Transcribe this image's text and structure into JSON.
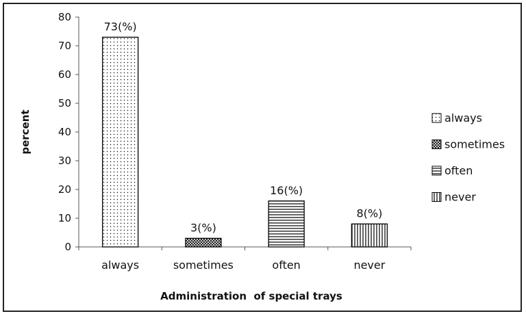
{
  "chart_data": {
    "type": "bar",
    "categories": [
      "always",
      "sometimes",
      "often",
      "never"
    ],
    "values": [
      73,
      3,
      16,
      8
    ],
    "data_labels": [
      "73(%)",
      "3(%)",
      "16(%)",
      "8(%)"
    ],
    "xlabel": "Administration  of special trays",
    "ylabel": "percent",
    "ylim": [
      0,
      80
    ],
    "yticks": [
      0,
      10,
      20,
      30,
      40,
      50,
      60,
      70,
      80
    ],
    "grid": false,
    "legend": {
      "placement": "right",
      "entries": [
        "always",
        "sometimes",
        "often",
        "never"
      ]
    },
    "patterns": [
      "dots",
      "crosshatch",
      "horizontal-lines",
      "vertical-lines"
    ],
    "bar_fill_color": "#ffffff",
    "bar_edge_color": "#000000"
  }
}
